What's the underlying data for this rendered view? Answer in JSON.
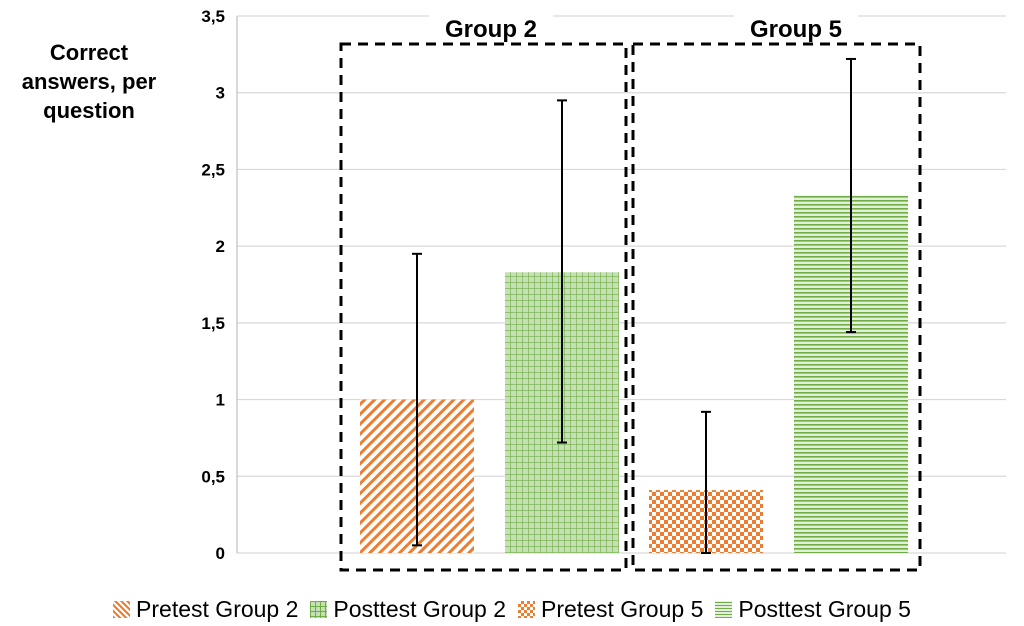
{
  "chart_data": {
    "type": "bar",
    "ylabel_lines": [
      "Correct",
      "answers, per",
      "question"
    ],
    "ylim": [
      0,
      3.5
    ],
    "yticks": [
      "0",
      "0,5",
      "1",
      "1,5",
      "2",
      "2,5",
      "3",
      "3,5"
    ],
    "ytick_values": [
      0,
      0.5,
      1,
      1.5,
      2,
      2.5,
      3,
      3.5
    ],
    "grid": true,
    "groups": [
      {
        "label": "Group 2",
        "series": [
          "Pretest Group 2",
          "Posttest Group 2"
        ]
      },
      {
        "label": "Group 5",
        "series": [
          "Pretest Group 5",
          "Posttest Group 5"
        ]
      }
    ],
    "series": [
      {
        "name": "Pretest Group 2",
        "value": 1.0,
        "error_low": 0.05,
        "error_high": 1.95,
        "pattern": "diagonal",
        "color": "#ed7d31"
      },
      {
        "name": "Posttest Group 2",
        "value": 1.83,
        "error_low": 0.72,
        "error_high": 2.95,
        "pattern": "grid",
        "color": "#70ad47"
      },
      {
        "name": "Pretest Group 5",
        "value": 0.41,
        "error_low": 0.0,
        "error_high": 0.92,
        "pattern": "checker",
        "color": "#ed7d31"
      },
      {
        "name": "Posttest Group 5",
        "value": 2.33,
        "error_low": 1.44,
        "error_high": 3.22,
        "pattern": "horizontal",
        "color": "#70ad47"
      }
    ],
    "legend_position": "bottom"
  }
}
